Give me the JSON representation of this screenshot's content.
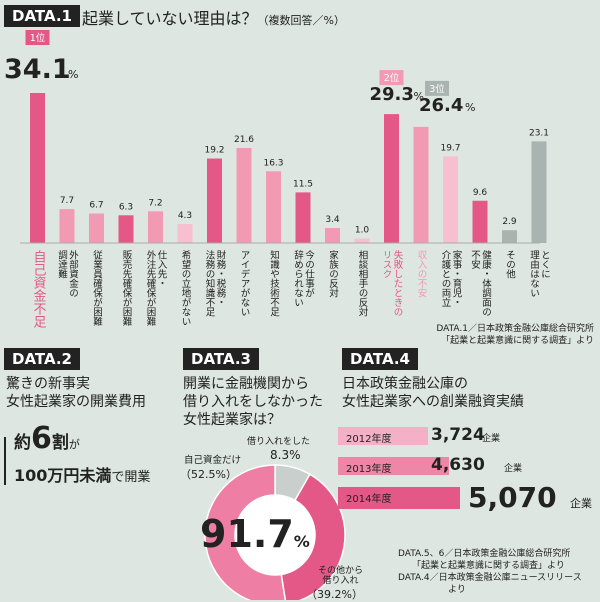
{
  "data1": {
    "tag": "DATA.1",
    "title": "起業していない理由は？",
    "title_note": "（複数回答／%）",
    "source": [
      "DATA.1／日本政策金融公庫総合研究所",
      "「起業と起業意識に関する調査」より"
    ],
    "rank_labels": [
      "1位",
      "2位",
      "3位"
    ],
    "top_values": [
      "34.1",
      "29.3",
      "26.4"
    ],
    "percent": "%"
  },
  "chart_data": {
    "type": "bar",
    "title": "起業していない理由は？（複数回答／%）",
    "ylim": [
      0,
      34.1
    ],
    "unit": "%",
    "categories": [
      [
        "自己資金不足"
      ],
      [
        "外部資金の",
        "調達難"
      ],
      [
        "従業員確保が困難"
      ],
      [
        "販売先確保が困難"
      ],
      [
        "仕入先・",
        "外注先確保が困難"
      ],
      [
        "希望の立地がない"
      ],
      [
        "財務・税務・",
        "法務の知識不足"
      ],
      [
        "アイデアがない"
      ],
      [
        "知識や技術不足"
      ],
      [
        "今の仕事が",
        "辞められない"
      ],
      [
        "家族の反対"
      ],
      [
        "相談相手の反対"
      ],
      [
        "失敗したときの",
        "リスク"
      ],
      [
        "収入の不安"
      ],
      [
        "家事・育児・",
        "介護との両立"
      ],
      [
        "健康・体調面の",
        "不安"
      ],
      [
        "その他"
      ],
      [
        "とくに",
        "理由はない"
      ]
    ],
    "values": [
      34.1,
      7.7,
      6.7,
      6.3,
      7.2,
      4.3,
      19.2,
      21.6,
      16.3,
      11.5,
      3.4,
      1.0,
      29.3,
      26.4,
      19.7,
      9.6,
      2.9,
      23.1
    ],
    "value_labels": [
      "",
      "7.7",
      "6.7",
      "6.3",
      "7.2",
      "4.3",
      "19.2",
      "21.6",
      "16.3",
      "11.5",
      "3.4",
      "1.0",
      "",
      "",
      "19.7",
      "9.6",
      "2.9",
      "23.1"
    ],
    "highlight": {
      "rank1": 0,
      "rank2": 12,
      "rank3": 13
    },
    "colors": [
      "#e35887",
      "#f29ab4",
      "#f29ab4",
      "#e35887",
      "#f29ab4",
      "#f7bfd0",
      "#e35887",
      "#f29ab4",
      "#f29ab4",
      "#e35887",
      "#f29ab4",
      "#f7bfd0",
      "#e35887",
      "#f29ab4",
      "#f7bfd0",
      "#e35887",
      "#a9b3af",
      "#a9b3af"
    ],
    "label_colors": {
      "rank1": "#e35887",
      "rank2": "#e35887",
      "rank3": "#e35887"
    }
  },
  "data2": {
    "tag": "DATA.2",
    "title": [
      "驚きの新事実",
      "女性起業家の開業費用"
    ],
    "big_prefix": "約",
    "big_num": "6",
    "big_unit": "割",
    "particle": "が",
    "line2_bold": "100万円未満",
    "line2_tail": "で開業"
  },
  "data3": {
    "tag": "DATA.3",
    "title": [
      "開業に金融機関から",
      "借り入れをしなかった",
      "女性起業家は？"
    ],
    "center_value": "91.7",
    "center_unit": "%",
    "slices": [
      {
        "label": "借り入れをした",
        "value": 8.3,
        "value_label": "8.3%",
        "color": "#c9cfcc"
      },
      {
        "label": "自己資金だけ",
        "value": 52.5,
        "value_label": "（52.5%）",
        "color": "#ee7ea3"
      },
      {
        "label": "その他から借り入れ",
        "value": 39.2,
        "value_label": "（39.2%）",
        "color": "#e35887"
      }
    ],
    "label_lines": [
      "その他から",
      "借り入れ"
    ]
  },
  "data4": {
    "tag": "DATA.4",
    "title": [
      "日本政策金融公庫の",
      "女性起業家への創業融資実績"
    ],
    "rows": [
      {
        "year": "2012年度",
        "value": "3,724",
        "unit": "企業",
        "n": 3724,
        "color": "#f4b0c6"
      },
      {
        "year": "2013年度",
        "value": "4,630",
        "unit": "企業",
        "n": 4630,
        "color": "#ee86a8"
      },
      {
        "year": "2014年度",
        "value": "5,070",
        "unit": "企業",
        "n": 5070,
        "color": "#e35887"
      }
    ],
    "source": [
      "DATA.5、6／日本政策金融公庫総合研究所",
      "「起業と起業意識に関する調査」より",
      "DATA.4／日本政策金融公庫ニュースリリース",
      "より"
    ]
  }
}
